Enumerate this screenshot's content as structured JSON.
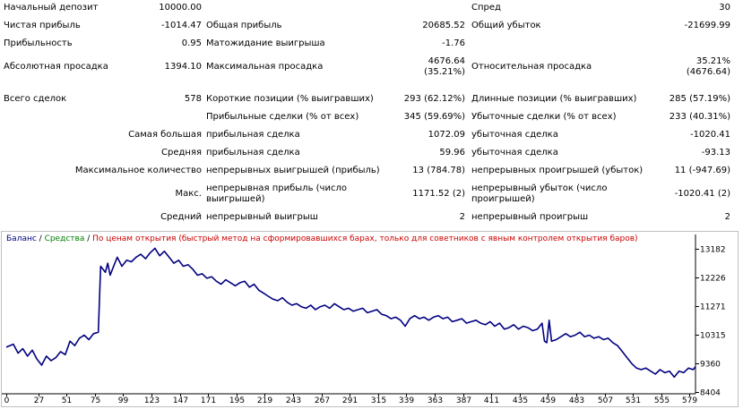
{
  "report": {
    "rows": [
      {
        "cells": [
          {
            "id": "initial_deposit_label",
            "text": "Начальный депозит"
          },
          {
            "id": "initial_deposit_value",
            "text": "10000.00"
          },
          {
            "id": "spread_label",
            "text": "Спред"
          },
          {
            "id": "spread_value",
            "text": "30"
          }
        ]
      },
      {
        "cells": [
          {
            "id": "net_profit_label",
            "text": "Чистая прибыль"
          },
          {
            "id": "net_profit_value",
            "text": "-1014.47"
          },
          {
            "id": "gross_profit_label",
            "text": "Общая прибыль"
          },
          {
            "id": "gross_profit_value",
            "text": "20685.52"
          },
          {
            "id": "gross_loss_label",
            "text": "Общий убыток"
          },
          {
            "id": "gross_loss_value",
            "text": "-21699.99"
          }
        ]
      },
      {
        "cells": [
          {
            "id": "profitability_label",
            "text": "Прибыльность"
          },
          {
            "id": "profitability_value",
            "text": "0.95"
          },
          {
            "id": "expected_payoff_label",
            "text": "Матожидание выигрыша"
          },
          {
            "id": "expected_payoff_value",
            "text": "-1.76"
          }
        ]
      },
      {
        "cells": [
          {
            "id": "abs_drawdown_label",
            "text": "Абсолютная просадка"
          },
          {
            "id": "abs_drawdown_value",
            "text": "1394.10"
          },
          {
            "id": "max_drawdown_label",
            "text": "Максимальная просадка"
          },
          {
            "id": "max_drawdown_value_1",
            "text": "4676.64"
          },
          {
            "id": "max_drawdown_value_2",
            "text": "(35.21%)"
          },
          {
            "id": "rel_drawdown_label",
            "text": "Относительная просадка"
          },
          {
            "id": "rel_drawdown_value_1",
            "text": "35.21%"
          },
          {
            "id": "rel_drawdown_value_2",
            "text": "(4676.64)"
          }
        ]
      }
    ],
    "total_trades_label": "Всего сделок",
    "total_trades_value": "578",
    "short_positions_label": "Короткие позиции (% выигравших)",
    "short_positions_value": "293 (62.12%)",
    "long_positions_label": "Длинные позиции (% выигравших)",
    "long_positions_value": "285 (57.19%)",
    "profit_trades_label": "Прибыльные сделки (% от всех)",
    "profit_trades_value": "345 (59.69%)",
    "loss_trades_label": "Убыточные сделки (% от всех)",
    "loss_trades_value": "233 (40.31%)",
    "largest_label": "Самая большая",
    "largest_profit_label": "прибыльная сделка",
    "largest_profit_value": "1072.09",
    "largest_loss_label": "убыточная сделка",
    "largest_loss_value": "-1020.41",
    "average_label": "Средняя",
    "average_profit_label": "прибыльная сделка",
    "average_profit_value": "59.96",
    "average_loss_label": "убыточная сделка",
    "average_loss_value": "-93.13",
    "max_count_label": "Максимальное количество",
    "max_consec_wins_label": "непрерывных выигрышей (прибыль)",
    "max_consec_wins_value": "13 (784.78)",
    "max_consec_losses_label": "непрерывных проигрышей (убыток)",
    "max_consec_losses_value": "11 (-947.69)",
    "max_label": "Макс.",
    "max_consec_profit_label": "непрерывная прибыль (число выигрышей)",
    "max_consec_profit_value": "1171.52 (2)",
    "max_consec_loss_label": "непрерывный убыток (число проигрышей)",
    "max_consec_loss_value": "-1020.41 (2)",
    "avg_label": "Средний",
    "avg_consec_wins_label": "непрерывный выигрыш",
    "avg_consec_wins_value": "2",
    "avg_consec_losses_label": "непрерывный проигрыш",
    "avg_consec_losses_value": "2"
  },
  "legend": {
    "balance": "Баланс",
    "separator": " / ",
    "equity": "Средства",
    "method": "По ценам открытия (быстрый метод на сформировавшихся барах, только для советников с явным контролем открытия баров)",
    "colors": {
      "balance": "#000080",
      "equity": "#008000",
      "method": "#cc0000"
    }
  },
  "chart_data": {
    "type": "line",
    "x_ticks": [
      0,
      27,
      51,
      75,
      99,
      123,
      147,
      171,
      195,
      219,
      243,
      267,
      291,
      315,
      339,
      363,
      387,
      411,
      435,
      459,
      483,
      507,
      531,
      555,
      579
    ],
    "y_ticks": [
      13182,
      12226,
      11271,
      10315,
      9360,
      8404
    ],
    "xlim": [
      0,
      584
    ],
    "ylim": [
      8404,
      13182
    ],
    "grid": false,
    "series": [
      {
        "name": "Баланс",
        "color": "#000080",
        "points": [
          [
            0,
            9900
          ],
          [
            6,
            10000
          ],
          [
            10,
            9700
          ],
          [
            14,
            9850
          ],
          [
            18,
            9600
          ],
          [
            22,
            9800
          ],
          [
            26,
            9500
          ],
          [
            30,
            9300
          ],
          [
            34,
            9600
          ],
          [
            38,
            9450
          ],
          [
            42,
            9550
          ],
          [
            46,
            9750
          ],
          [
            50,
            9650
          ],
          [
            54,
            10100
          ],
          [
            58,
            9950
          ],
          [
            62,
            10200
          ],
          [
            66,
            10300
          ],
          [
            70,
            10150
          ],
          [
            74,
            10350
          ],
          [
            78,
            10400
          ],
          [
            80,
            12600
          ],
          [
            84,
            12400
          ],
          [
            86,
            12700
          ],
          [
            88,
            12300
          ],
          [
            90,
            12500
          ],
          [
            94,
            12900
          ],
          [
            98,
            12600
          ],
          [
            102,
            12800
          ],
          [
            106,
            12750
          ],
          [
            110,
            12900
          ],
          [
            114,
            13000
          ],
          [
            118,
            12850
          ],
          [
            122,
            13050
          ],
          [
            126,
            13200
          ],
          [
            130,
            12950
          ],
          [
            134,
            13100
          ],
          [
            138,
            12900
          ],
          [
            142,
            12700
          ],
          [
            146,
            12800
          ],
          [
            150,
            12600
          ],
          [
            154,
            12650
          ],
          [
            158,
            12500
          ],
          [
            162,
            12300
          ],
          [
            166,
            12350
          ],
          [
            170,
            12200
          ],
          [
            174,
            12250
          ],
          [
            178,
            12100
          ],
          [
            182,
            12000
          ],
          [
            186,
            12150
          ],
          [
            190,
            12050
          ],
          [
            194,
            11950
          ],
          [
            198,
            12050
          ],
          [
            202,
            12100
          ],
          [
            206,
            11900
          ],
          [
            210,
            12000
          ],
          [
            214,
            11800
          ],
          [
            218,
            11700
          ],
          [
            222,
            11600
          ],
          [
            226,
            11500
          ],
          [
            230,
            11450
          ],
          [
            234,
            11550
          ],
          [
            238,
            11400
          ],
          [
            242,
            11300
          ],
          [
            246,
            11350
          ],
          [
            250,
            11250
          ],
          [
            254,
            11200
          ],
          [
            258,
            11300
          ],
          [
            262,
            11150
          ],
          [
            266,
            11250
          ],
          [
            270,
            11300
          ],
          [
            274,
            11200
          ],
          [
            278,
            11350
          ],
          [
            282,
            11250
          ],
          [
            286,
            11150
          ],
          [
            290,
            11200
          ],
          [
            294,
            11100
          ],
          [
            298,
            11150
          ],
          [
            302,
            11200
          ],
          [
            306,
            11050
          ],
          [
            310,
            11100
          ],
          [
            314,
            11150
          ],
          [
            318,
            11000
          ],
          [
            322,
            10950
          ],
          [
            326,
            10850
          ],
          [
            330,
            10900
          ],
          [
            334,
            10800
          ],
          [
            338,
            10600
          ],
          [
            342,
            10850
          ],
          [
            346,
            10950
          ],
          [
            350,
            10850
          ],
          [
            354,
            10900
          ],
          [
            358,
            10800
          ],
          [
            362,
            10900
          ],
          [
            366,
            10950
          ],
          [
            370,
            10850
          ],
          [
            374,
            10900
          ],
          [
            378,
            10750
          ],
          [
            382,
            10800
          ],
          [
            386,
            10850
          ],
          [
            390,
            10700
          ],
          [
            394,
            10750
          ],
          [
            398,
            10800
          ],
          [
            402,
            10700
          ],
          [
            406,
            10650
          ],
          [
            410,
            10750
          ],
          [
            414,
            10600
          ],
          [
            418,
            10700
          ],
          [
            422,
            10500
          ],
          [
            426,
            10550
          ],
          [
            430,
            10650
          ],
          [
            434,
            10500
          ],
          [
            438,
            10600
          ],
          [
            442,
            10550
          ],
          [
            446,
            10450
          ],
          [
            450,
            10500
          ],
          [
            454,
            10700
          ],
          [
            456,
            10100
          ],
          [
            458,
            10050
          ],
          [
            460,
            10800
          ],
          [
            462,
            10100
          ],
          [
            466,
            10150
          ],
          [
            470,
            10250
          ],
          [
            474,
            10350
          ],
          [
            478,
            10250
          ],
          [
            482,
            10300
          ],
          [
            486,
            10400
          ],
          [
            490,
            10250
          ],
          [
            494,
            10300
          ],
          [
            498,
            10200
          ],
          [
            502,
            10250
          ],
          [
            506,
            10150
          ],
          [
            510,
            10200
          ],
          [
            514,
            10050
          ],
          [
            518,
            9950
          ],
          [
            522,
            9750
          ],
          [
            526,
            9550
          ],
          [
            530,
            9350
          ],
          [
            534,
            9200
          ],
          [
            538,
            9150
          ],
          [
            542,
            9200
          ],
          [
            546,
            9100
          ],
          [
            550,
            9000
          ],
          [
            554,
            9150
          ],
          [
            558,
            9050
          ],
          [
            562,
            9100
          ],
          [
            566,
            8900
          ],
          [
            570,
            9100
          ],
          [
            574,
            9050
          ],
          [
            578,
            9200
          ],
          [
            582,
            9150
          ],
          [
            584,
            9250
          ]
        ]
      }
    ]
  }
}
